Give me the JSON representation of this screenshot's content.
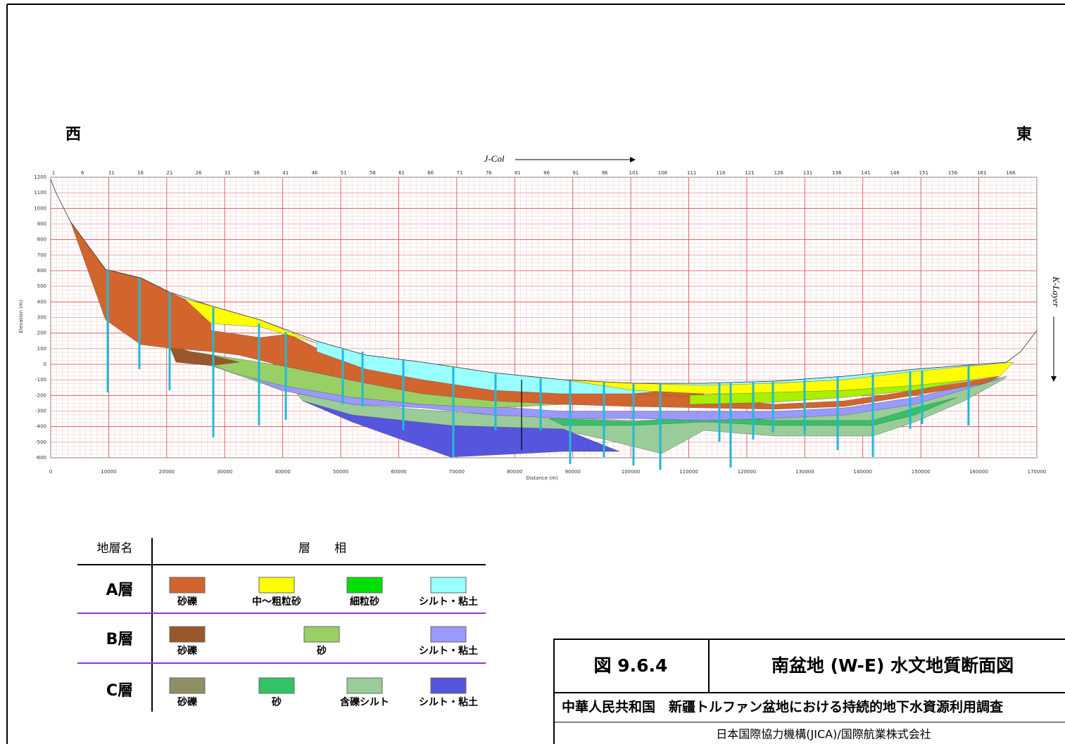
{
  "labels": {
    "west": "西",
    "east": "東",
    "j_col": "J-Col",
    "k_layer": "K-Layer",
    "y_axis": "Elevation (m)",
    "x_axis": "Distance (m)"
  },
  "axis": {
    "xlim": [
      0,
      170000
    ],
    "ylim": [
      -600,
      1200
    ],
    "xticks": [
      0,
      10000,
      20000,
      30000,
      40000,
      50000,
      60000,
      70000,
      80000,
      90000,
      100000,
      110000,
      120000,
      130000,
      140000,
      150000,
      160000,
      170000
    ],
    "yticks": [
      -600,
      -500,
      -400,
      -300,
      -200,
      -100,
      0,
      100,
      200,
      300,
      400,
      500,
      600,
      700,
      800,
      900,
      1000,
      1100,
      1200
    ],
    "top_ticks": [
      1,
      6,
      11,
      16,
      21,
      26,
      31,
      36,
      41,
      46,
      51,
      56,
      61,
      66,
      71,
      76,
      81,
      86,
      91,
      96,
      101,
      106,
      111,
      116,
      121,
      126,
      131,
      136,
      141,
      146,
      151,
      156,
      161,
      166
    ]
  },
  "legend": {
    "header": [
      "地層名",
      "層　　相"
    ],
    "rows": [
      {
        "layer": "A層",
        "items": [
          {
            "label": "砂礫",
            "color": "#d2642d"
          },
          {
            "label": "中～粗粒砂",
            "color": "#ffff00"
          },
          {
            "label": "細粒砂",
            "color": "#00e000"
          },
          {
            "label": "シルト・粘土",
            "color": "#99ffff"
          }
        ]
      },
      {
        "layer": "B層",
        "items": [
          {
            "label": "砂礫",
            "color": "#99582a"
          },
          {
            "label": "砂",
            "color": "#99d066"
          },
          {
            "label": "シルト・粘土",
            "color": "#9999ff"
          }
        ]
      },
      {
        "layer": "C層",
        "items": [
          {
            "label": "砂礫",
            "color": "#8f8f66"
          },
          {
            "label": "砂",
            "color": "#33c266"
          },
          {
            "label": "含礫シルト",
            "color": "#99cc99"
          },
          {
            "label": "シルト・粘土",
            "color": "#5555dd"
          }
        ]
      }
    ]
  },
  "title_block": {
    "figure": "図 9.6.4",
    "title": "南盆地 (W-E) 水文地質断面図",
    "project": "中華人民共和国　新疆トルファン盆地における持続的地下水資源利用調査",
    "org": "日本国際協力機構(JICA)/国際航業株式会社"
  }
}
